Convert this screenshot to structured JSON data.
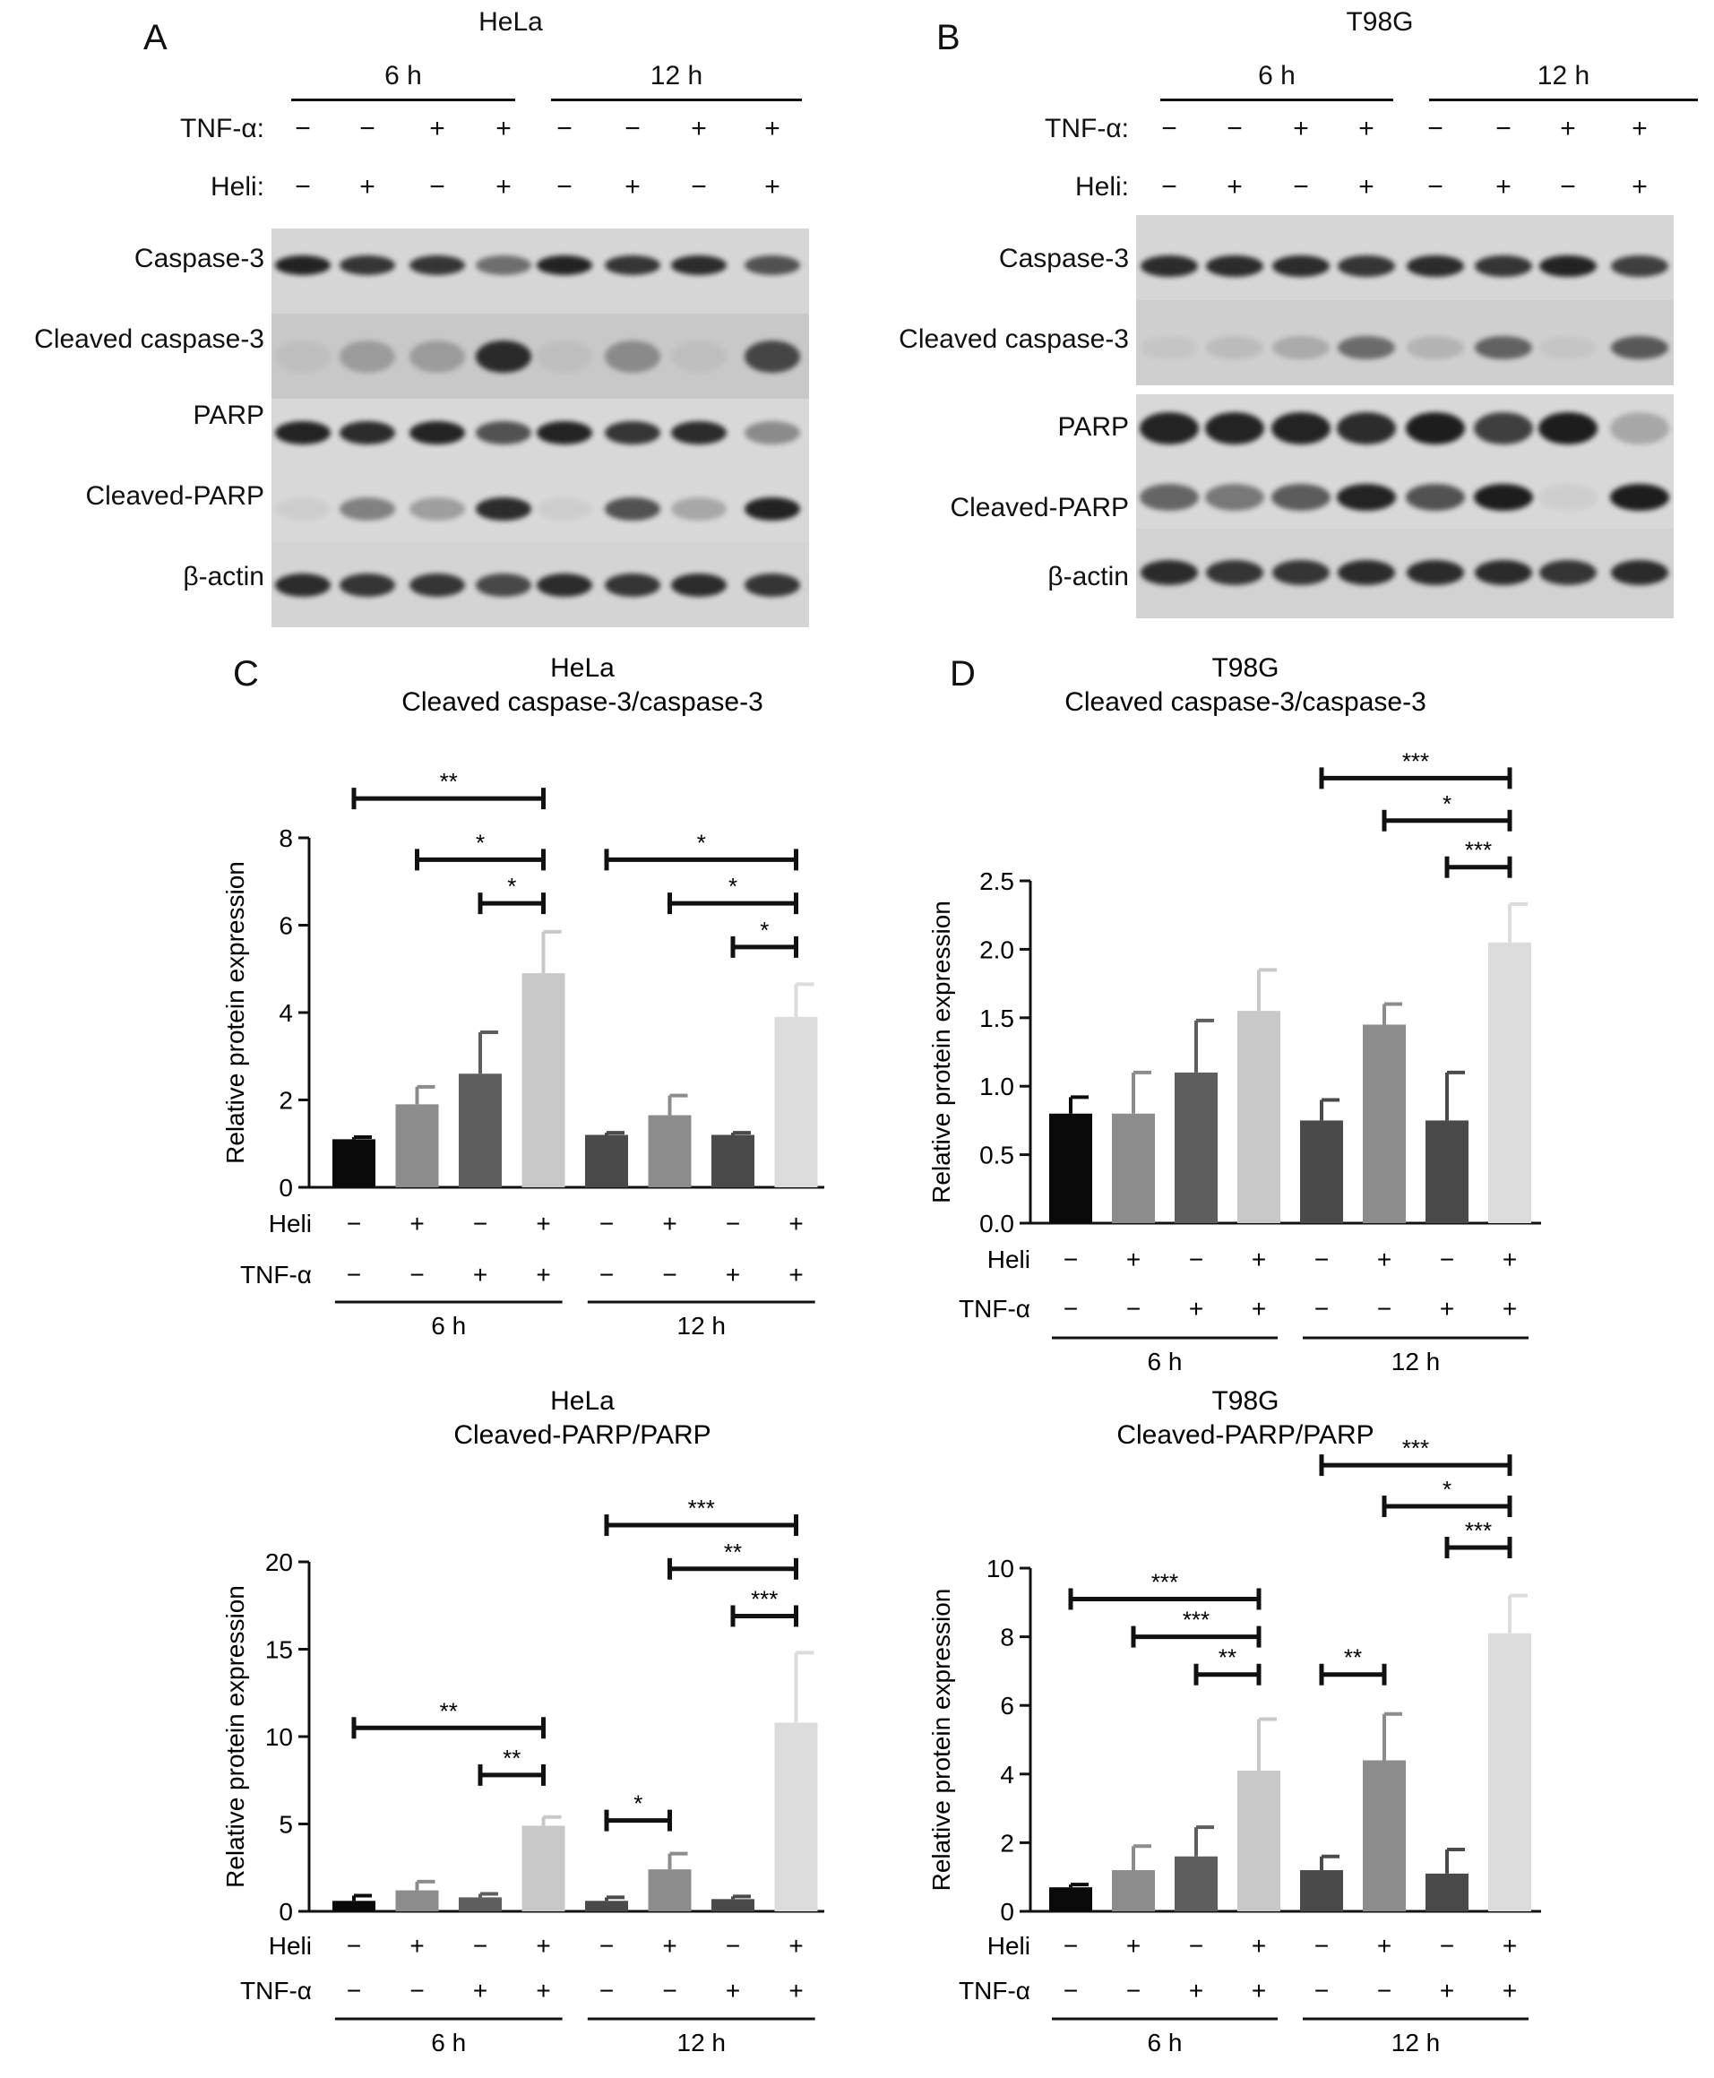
{
  "figure": {
    "panels": {
      "A": {
        "letter": "A",
        "title": "HeLa"
      },
      "B": {
        "letter": "B",
        "title": "T98G"
      },
      "C": {
        "letter": "C"
      },
      "D": {
        "letter": "D"
      }
    },
    "time_labels": [
      "6 h",
      "12 h"
    ],
    "row_labels": {
      "tnf": "TNF-α:",
      "heli": "Heli:"
    },
    "tnf_pattern": [
      "−",
      "−",
      "+",
      "+",
      "−",
      "−",
      "+",
      "+"
    ],
    "heli_pattern": [
      "−",
      "+",
      "−",
      "+",
      "−",
      "+",
      "−",
      "+"
    ],
    "blot_labels_A": [
      "Caspase-3",
      "Cleaved caspase-3",
      "PARP",
      "Cleaved-PARP",
      "β-actin"
    ],
    "blot_labels_B": [
      "Caspase-3",
      "Cleaved caspase-3",
      "PARP",
      "Cleaved-PARP",
      "β-actin"
    ],
    "colors": {
      "bar1": "#0a0a0a",
      "bar2": "#8c8c8c",
      "bar3": "#5e5e5e",
      "bar4": "#c8c8c8",
      "bar5": "#4a4a4a",
      "bar6": "#8c8c8c",
      "bar7": "#4a4a4a",
      "bar8": "#dcdcdc"
    }
  },
  "chart_data": [
    {
      "id": "C-top",
      "type": "bar",
      "title": "HeLa",
      "subtitle": "Cleaved caspase-3/caspase-3",
      "ylabel": "Relative protein expression",
      "ylim": [
        0,
        8
      ],
      "yticks": [
        0,
        2,
        4,
        6,
        8
      ],
      "values": [
        1.1,
        1.9,
        2.6,
        4.9,
        1.2,
        1.65,
        1.2,
        3.9
      ],
      "errors": [
        0.05,
        0.4,
        0.95,
        0.95,
        0.05,
        0.45,
        0.05,
        0.75
      ],
      "heli": [
        "−",
        "+",
        "−",
        "+",
        "−",
        "+",
        "−",
        "+"
      ],
      "tnf": [
        "−",
        "−",
        "+",
        "+",
        "−",
        "−",
        "+",
        "+"
      ],
      "row_labels": [
        "Heli",
        "TNF-α"
      ],
      "groups": [
        "6 h",
        "12 h"
      ],
      "significance": [
        {
          "from": 0,
          "to": 3,
          "label": "**",
          "y": 8.9
        },
        {
          "from": 1,
          "to": 3,
          "label": "*",
          "y": 7.5
        },
        {
          "from": 2,
          "to": 3,
          "label": "*",
          "y": 6.5
        },
        {
          "from": 4,
          "to": 7,
          "label": "*",
          "y": 7.5
        },
        {
          "from": 5,
          "to": 7,
          "label": "*",
          "y": 6.5
        },
        {
          "from": 6,
          "to": 7,
          "label": "*",
          "y": 5.5
        }
      ]
    },
    {
      "id": "D-top",
      "type": "bar",
      "title": "T98G",
      "subtitle": "Cleaved caspase-3/caspase-3",
      "ylabel": "Relative protein expression",
      "ylim": [
        0,
        2.5
      ],
      "yticks": [
        "0.0",
        "0.5",
        "1.0",
        "1.5",
        "2.0",
        "2.5"
      ],
      "values": [
        0.8,
        0.8,
        1.1,
        1.55,
        0.75,
        1.45,
        0.75,
        2.05
      ],
      "errors": [
        0.12,
        0.3,
        0.38,
        0.3,
        0.15,
        0.15,
        0.35,
        0.28
      ],
      "heli": [
        "−",
        "+",
        "−",
        "+",
        "−",
        "+",
        "−",
        "+"
      ],
      "tnf": [
        "−",
        "−",
        "+",
        "+",
        "−",
        "−",
        "+",
        "+"
      ],
      "row_labels": [
        "Heli",
        "TNF-α"
      ],
      "groups": [
        "6 h",
        "12 h"
      ],
      "significance": [
        {
          "from": 4,
          "to": 7,
          "label": "***",
          "y": 3.25
        },
        {
          "from": 5,
          "to": 7,
          "label": "*",
          "y": 2.94
        },
        {
          "from": 6,
          "to": 7,
          "label": "***",
          "y": 2.6
        }
      ]
    },
    {
      "id": "C-bottom",
      "type": "bar",
      "title": "HeLa",
      "subtitle": "Cleaved-PARP/PARP",
      "ylabel": "Relative protein expression",
      "ylim": [
        0,
        20
      ],
      "yticks": [
        0,
        5,
        10,
        15,
        20
      ],
      "values": [
        0.6,
        1.2,
        0.8,
        4.9,
        0.6,
        2.4,
        0.7,
        10.8
      ],
      "errors": [
        0.3,
        0.5,
        0.2,
        0.5,
        0.2,
        0.9,
        0.15,
        4.0
      ],
      "heli": [
        "−",
        "+",
        "−",
        "+",
        "−",
        "+",
        "−",
        "+"
      ],
      "tnf": [
        "−",
        "−",
        "+",
        "+",
        "−",
        "−",
        "+",
        "+"
      ],
      "row_labels": [
        "Heli",
        "TNF-α"
      ],
      "groups": [
        "6 h",
        "12 h"
      ],
      "significance": [
        {
          "from": 0,
          "to": 3,
          "label": "**",
          "y": 10.5
        },
        {
          "from": 2,
          "to": 3,
          "label": "**",
          "y": 7.8
        },
        {
          "from": 4,
          "to": 5,
          "label": "*",
          "y": 5.2
        },
        {
          "from": 4,
          "to": 7,
          "label": "***",
          "y": 22.1
        },
        {
          "from": 5,
          "to": 7,
          "label": "**",
          "y": 19.6
        },
        {
          "from": 6,
          "to": 7,
          "label": "***",
          "y": 16.9
        }
      ]
    },
    {
      "id": "D-bottom",
      "type": "bar",
      "title": "T98G",
      "subtitle": "Cleaved-PARP/PARP",
      "ylabel": "Relative protein expression",
      "ylim": [
        0,
        10
      ],
      "yticks": [
        0,
        2,
        4,
        6,
        8,
        10
      ],
      "values": [
        0.7,
        1.2,
        1.6,
        4.1,
        1.2,
        4.4,
        1.1,
        8.1
      ],
      "errors": [
        0.08,
        0.7,
        0.85,
        1.5,
        0.4,
        1.35,
        0.7,
        1.1
      ],
      "heli": [
        "−",
        "+",
        "−",
        "+",
        "−",
        "+",
        "−",
        "+"
      ],
      "tnf": [
        "−",
        "−",
        "+",
        "+",
        "−",
        "−",
        "+",
        "+"
      ],
      "row_labels": [
        "Heli",
        "TNF-α"
      ],
      "groups": [
        "6 h",
        "12 h"
      ],
      "significance": [
        {
          "from": 0,
          "to": 3,
          "label": "***",
          "y": 9.1
        },
        {
          "from": 1,
          "to": 3,
          "label": "***",
          "y": 8.0
        },
        {
          "from": 2,
          "to": 3,
          "label": "**",
          "y": 6.9
        },
        {
          "from": 4,
          "to": 5,
          "label": "**",
          "y": 6.9
        },
        {
          "from": 4,
          "to": 7,
          "label": "***",
          "y": 13.0
        },
        {
          "from": 5,
          "to": 7,
          "label": "*",
          "y": 11.8
        },
        {
          "from": 6,
          "to": 7,
          "label": "***",
          "y": 10.6
        }
      ]
    }
  ]
}
